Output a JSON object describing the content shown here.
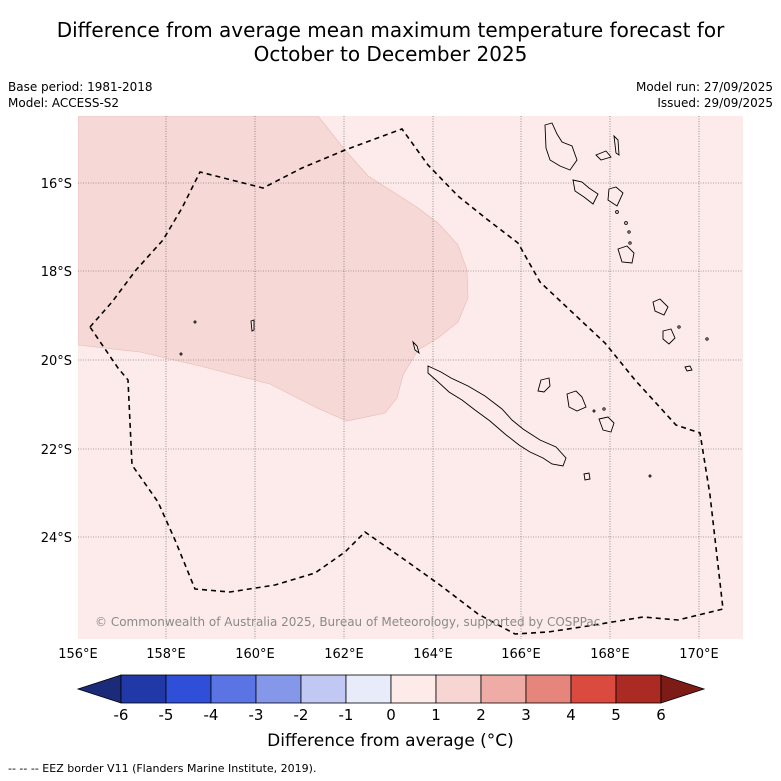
{
  "title": {
    "line1": "Difference from average mean maximum temperature forecast for",
    "line2": "October to December 2025"
  },
  "meta_left": {
    "base_period": "Base period: 1981-2018",
    "model": "Model: ACCESS-S2"
  },
  "meta_right": {
    "model_run": "Model run: 27/09/2025",
    "issued": "Issued: 29/09/2025"
  },
  "map": {
    "lon_range": [
      156,
      171
    ],
    "lat_range": [
      -26.1,
      -14.3
    ],
    "lat_ticks": [
      "16°S",
      "18°S",
      "20°S",
      "22°S",
      "24°S"
    ],
    "lon_ticks": [
      "156°E",
      "158°E",
      "160°E",
      "162°E",
      "164°E",
      "166°E",
      "168°E",
      "170°E"
    ],
    "credit": "© Commonwealth of Australia 2025, Bureau of Meteorology, supported by COSPPac",
    "regions": [
      {
        "category": "0 to 1",
        "color": "#fcebea"
      },
      {
        "category": "1 to 2",
        "color": "#f6d8d6"
      }
    ]
  },
  "colorbar": {
    "ticks": [
      "-6",
      "-5",
      "-4",
      "-3",
      "-2",
      "-1",
      "0",
      "1",
      "2",
      "3",
      "4",
      "5",
      "6"
    ],
    "colors": [
      "#2139a7",
      "#2f4fd9",
      "#5a74e3",
      "#8597e8",
      "#c1c8f3",
      "#e8ebfa",
      "#fdebea",
      "#f6d5d2",
      "#efaca6",
      "#e5857c",
      "#da4a3e",
      "#ab2a23"
    ],
    "under_color": "#1c2a7a",
    "over_color": "#7d1c17",
    "label": "Difference from average (°C)"
  },
  "footnote": "--  --  -- EEZ border V11 (Flanders Marine Institute, 2019)."
}
